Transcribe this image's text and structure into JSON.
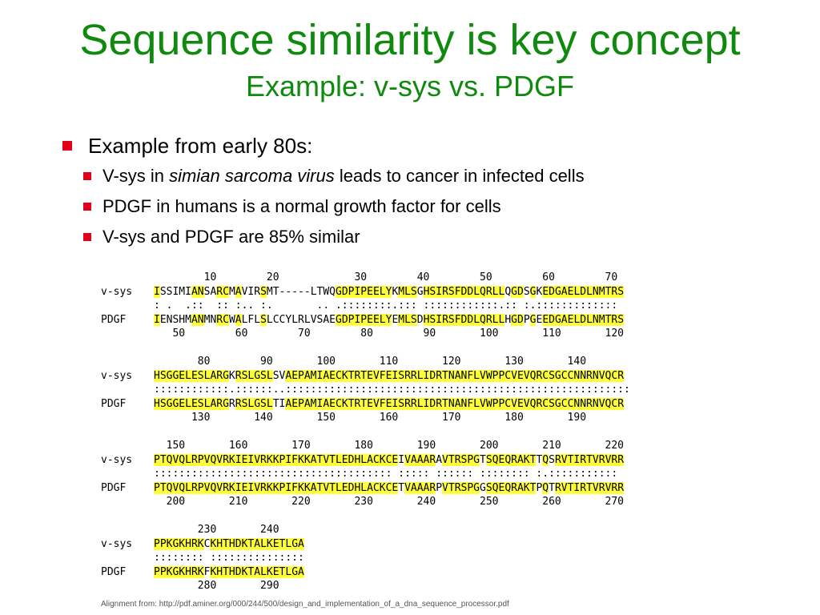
{
  "slide": {
    "title": "Sequence similarity is key concept",
    "subtitle": "Example: v-sys vs. PDGF",
    "bullet_main": "Example from early 80s:",
    "sub_bullets": [
      {
        "pre": "V-sys in ",
        "italic": "simian sarcoma virus",
        "post": " leads to cancer in infected cells"
      },
      {
        "pre": "PDGF in humans is a normal growth factor for cells",
        "italic": "",
        "post": ""
      },
      {
        "pre": "V-sys and PDGF are 85% similar",
        "italic": "",
        "post": ""
      }
    ],
    "footnote": "Alignment from: http://pdf.aminer.org/000/244/500/design_and_implementation_of_a_dna_sequence_processor.pdf"
  },
  "alignment": {
    "label_top": "v-sys",
    "label_bottom": "PDGF",
    "blocks": [
      {
        "top_numbers": "        10        20            30        40        50        60        70",
        "top_seq": "ISSIMIANSARCMAVIRSMT-----LTWQGDPIPEELYKMLSGHSIRSFDDLQRLLQGDSGKEDGAELDLNMTRS",
        "match": ": .  .::  :: :.. :.       .. .::::::::.::: ::::::::::::.:: :.:::::::::::::",
        "bottom_seq": "IENSHMANMNRCWALFLSLCCYLRLVSAEGDPIPEELYEMLSDHSIRSFDDLQRLLHGDPGEEDGAELDLNMTRS",
        "bottom_numbers": "   50        60        70        80        90       100       110       120"
      },
      {
        "top_numbers": "       80        90       100       110       120       130       140",
        "top_seq": "HSGGELESLARGKRSLGSLSVAEPAMIAECKTRTEVFEISRRLIDRTNANFLVWPPCVEVQRCSGCCNNRNVQCR",
        "match": "::::::::::::.::::::..:::::::::::::::::::::::::::::::::::::::::::::::::::::::",
        "bottom_seq": "HSGGELESLARGRRSLGSLTIAEPAMIAECKTRTEVFEISRRLIDRTNANFLVWPPCVEVQRCSGCCNNRNVQCR",
        "bottom_numbers": "      130       140       150       160       170       180       190"
      },
      {
        "top_numbers": "  150       160       170       180       190       200       210       220",
        "top_seq": "PTQVQLRPVQVRKIEIVRKKPIFKKATVTLEDHLACKCEIVAAARAVTRSPGTSQEQRAKTTQSRVTIRTVRVRR",
        "match": ":::::::::::::::::::::::::::::::::::::: ::::: :::::: :::::::: :.:::::::::::",
        "bottom_seq": "PTQVQLRPVQVRKIEIVRKKPIFKKATVTLEDHLACKCETVAAARPVTRSPGGSQEQRAKTPQTRVTIRTVRVRR",
        "bottom_numbers": "  200       210       220       230       240       250       260       270"
      },
      {
        "top_numbers": "       230       240",
        "top_seq": "PPKGKHRKCKHTHDKTALKETLGA",
        "match": ":::::::: :::::::::::::::",
        "bottom_seq": "PPKGKHRKFKHTHDKTALKETLGA",
        "bottom_numbers": "       280       290"
      }
    ]
  }
}
